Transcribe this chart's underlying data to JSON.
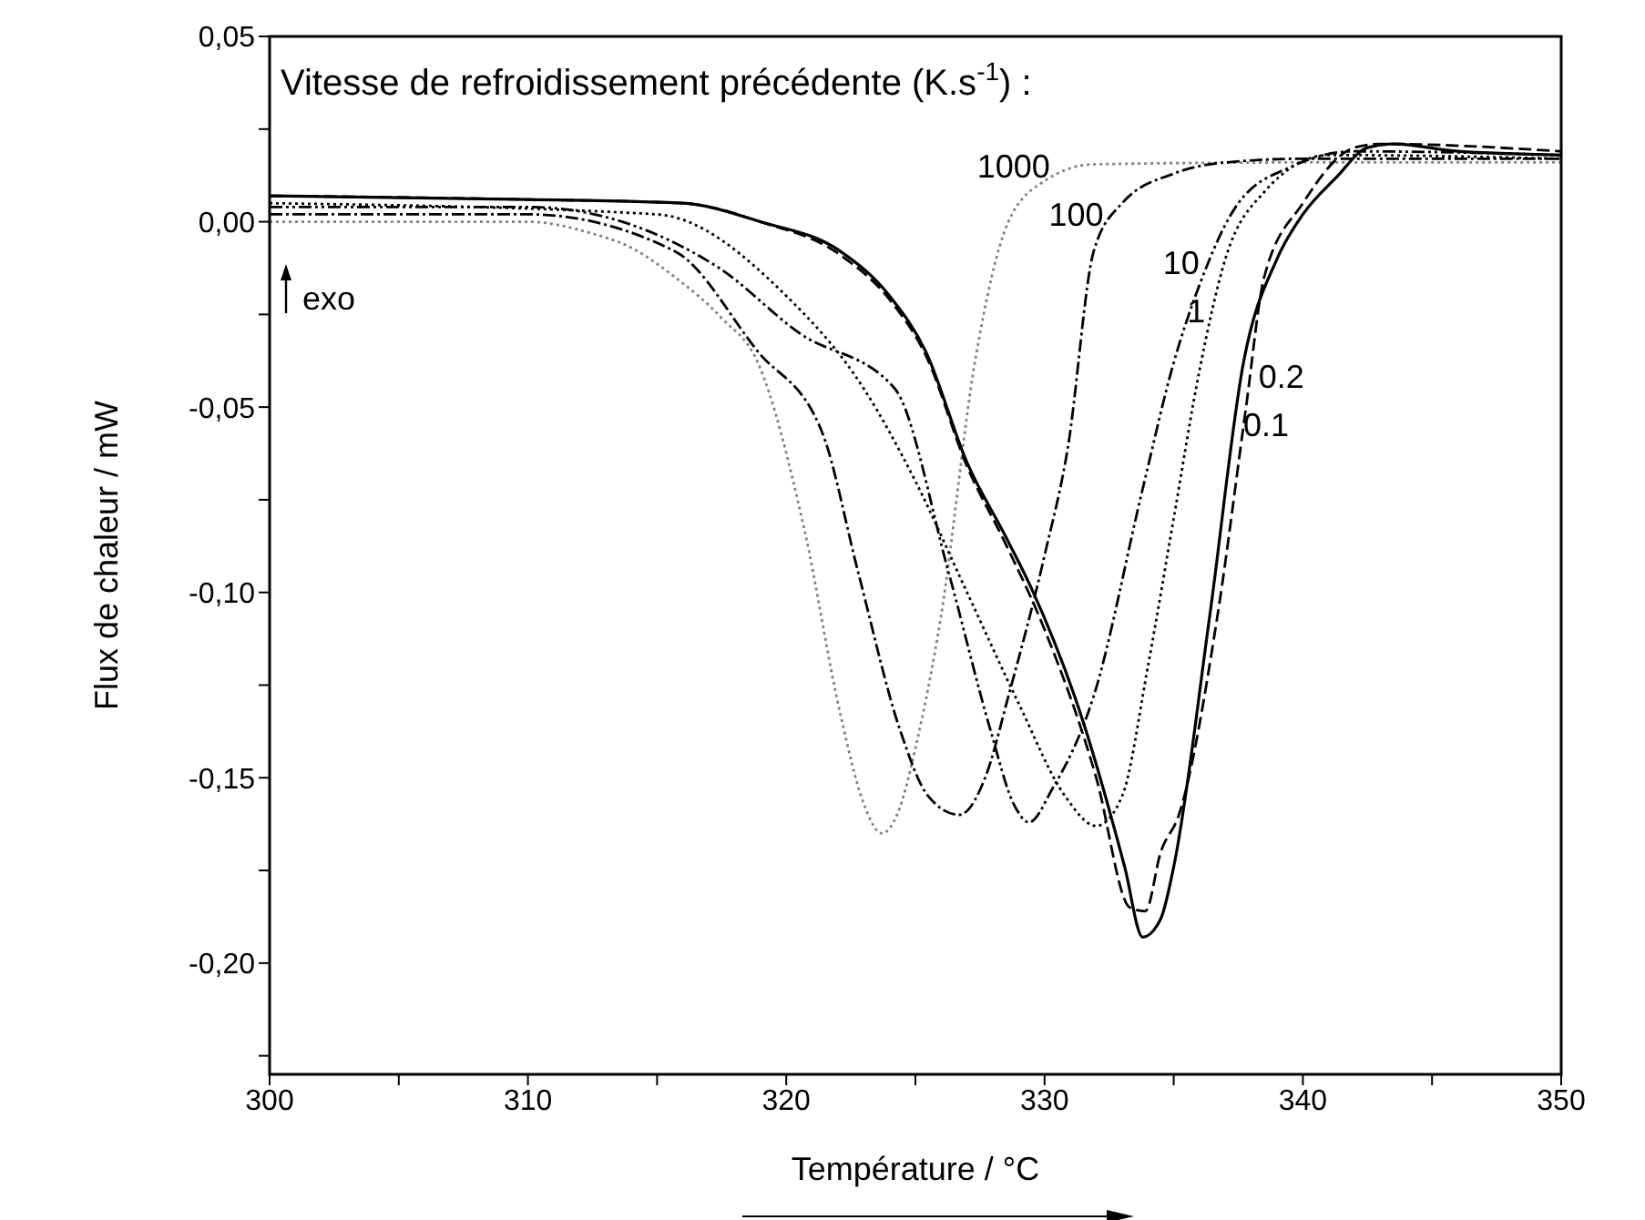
{
  "chart_data": {
    "type": "line",
    "xlabel": "Température / °C",
    "ylabel": "Flux de chaleur / mW",
    "legend_title": "Vitesse de refroidissement précédente (K.s$^{-1}$) :",
    "annotations": [
      "exo"
    ],
    "xlim": [
      300,
      350
    ],
    "xticks": [
      300,
      {
        "value": 305,
        "label": null
      },
      310,
      {
        "value": 315,
        "label": null
      },
      320,
      {
        "value": 325,
        "label": null
      },
      330,
      {
        "value": 335,
        "label": null
      },
      340,
      {
        "value": 345,
        "label": null
      },
      350
    ],
    "ylim": [
      -0.23,
      0.05
    ],
    "yticks": [
      {
        "value": -0.225,
        "label": null
      },
      {
        "value": -0.2,
        "label": "-0,20"
      },
      {
        "value": -0.175,
        "label": null
      },
      {
        "value": -0.15,
        "label": "-0,15"
      },
      {
        "value": -0.125,
        "label": null
      },
      {
        "value": -0.1,
        "label": "-0,10"
      },
      {
        "value": -0.075,
        "label": null
      },
      {
        "value": -0.05,
        "label": "-0,05"
      },
      {
        "value": -0.025,
        "label": null
      },
      {
        "value": 0,
        "label": "0,00"
      },
      {
        "value": 0.025,
        "label": null
      },
      {
        "value": 0.05,
        "label": "0,05"
      }
    ],
    "grid": false,
    "legend": false,
    "marker": "none",
    "series": [
      {
        "name": "1000",
        "color": "#808080",
        "line_style": "dotted",
        "x": [
          300,
          310,
          312.4,
          314,
          315.7,
          317.5,
          318.9,
          320.7,
          322.1,
          323,
          323.7,
          324.4,
          325,
          326,
          327.3,
          328.6,
          330,
          331.9,
          340,
          350
        ],
        "values": [
          0,
          0,
          -0.003,
          -0.007,
          -0.015,
          -0.026,
          -0.038,
          -0.083,
          -0.133,
          -0.157,
          -0.165,
          -0.158,
          -0.142,
          -0.106,
          -0.038,
          0,
          0.011,
          0.0155,
          0.016,
          0.016
        ]
      },
      {
        "name": "100",
        "color": "#000000",
        "line_style": "dashdot",
        "x": [
          300,
          310,
          315.7,
          318.9,
          321.4,
          322.8,
          324.4,
          325.5,
          326.7,
          327.7,
          328.6,
          330,
          330.9,
          331.9,
          333,
          335,
          337,
          340,
          350
        ],
        "values": [
          0.002,
          0.002,
          -0.008,
          -0.035,
          -0.057,
          -0.095,
          -0.137,
          -0.155,
          -0.16,
          -0.15,
          -0.128,
          -0.09,
          -0.061,
          -0.008,
          0.005,
          0.013,
          0.016,
          0.017,
          0.017
        ]
      },
      {
        "name": "10",
        "color": "#000000",
        "line_style": "dashdotdot",
        "x": [
          300,
          310,
          317.3,
          320.5,
          324.2,
          326.3,
          327.9,
          328.8,
          329.4,
          330.3,
          331.9,
          333.8,
          335,
          336,
          337.5,
          339.6,
          342,
          350
        ],
        "values": [
          0.004,
          0.004,
          -0.012,
          -0.03,
          -0.045,
          -0.095,
          -0.137,
          -0.157,
          -0.162,
          -0.153,
          -0.128,
          -0.072,
          -0.038,
          -0.017,
          0.005,
          0.015,
          0.019,
          0.018
        ]
      },
      {
        "name": "1",
        "color": "#000000",
        "line_style": "dotted",
        "x": [
          300,
          315,
          320,
          323,
          325,
          327,
          329,
          330.8,
          332,
          333,
          334,
          335,
          336,
          337,
          338.5,
          341,
          350
        ],
        "values": [
          0.005,
          0.002,
          -0.02,
          -0.045,
          -0.07,
          -0.1,
          -0.13,
          -0.155,
          -0.163,
          -0.155,
          -0.12,
          -0.08,
          -0.04,
          -0.01,
          0.008,
          0.018,
          0.017
        ]
      },
      {
        "name": "0.2",
        "color": "#000000",
        "line_style": "dashed",
        "x": [
          300,
          310,
          316,
          319,
          322.1,
          324,
          325.4,
          327,
          328.5,
          330,
          332,
          333.3,
          333.9,
          334.5,
          335.2,
          336.7,
          337.8,
          338.5,
          340,
          342,
          343,
          350
        ],
        "values": [
          0.007,
          0.006,
          0.005,
          0,
          -0.009,
          -0.021,
          -0.036,
          -0.066,
          -0.087,
          -0.11,
          -0.15,
          -0.185,
          -0.186,
          -0.17,
          -0.16,
          -0.106,
          -0.05,
          -0.015,
          0.005,
          0.02,
          0.021,
          0.019
        ]
      },
      {
        "name": "0.1",
        "color": "#000000",
        "line_style": "solid",
        "x": [
          300,
          310,
          316,
          319,
          322.1,
          324,
          325.4,
          327,
          328.5,
          329.5,
          331.5,
          333.1,
          333.8,
          334.5,
          335,
          336.4,
          337.7,
          339,
          340,
          341.3,
          342.5,
          343.5,
          346,
          350
        ],
        "values": [
          0.007,
          0.006,
          0.005,
          0,
          -0.008,
          -0.02,
          -0.035,
          -0.065,
          -0.085,
          -0.099,
          -0.135,
          -0.174,
          -0.193,
          -0.188,
          -0.174,
          -0.106,
          -0.038,
          -0.01,
          0.002,
          0.012,
          0.02,
          0.021,
          0.019,
          0.018
        ]
      }
    ]
  }
}
